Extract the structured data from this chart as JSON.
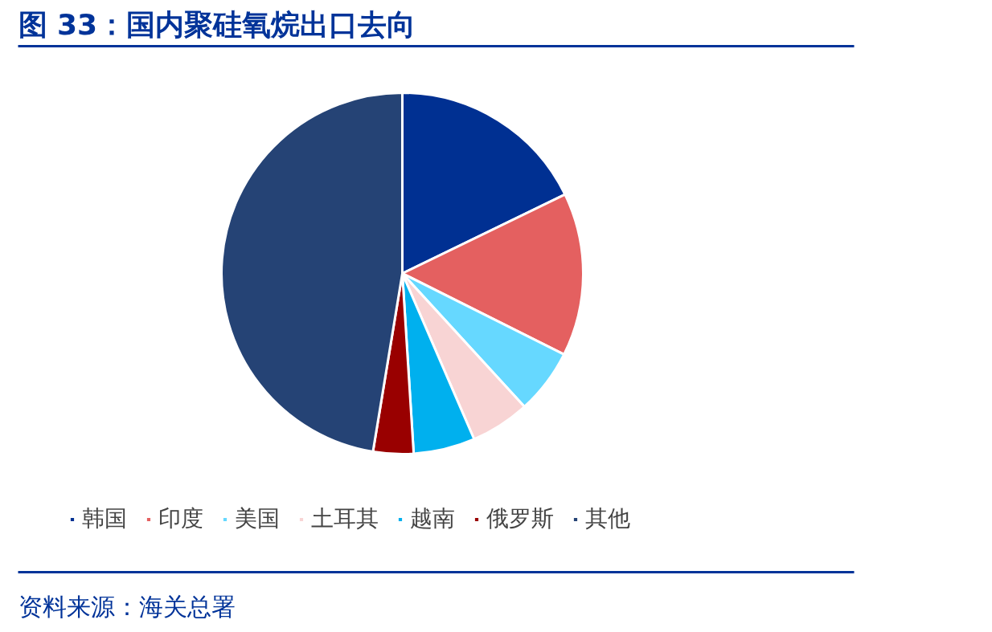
{
  "chart_data": {
    "type": "pie",
    "title": "图 33：国内聚硅氧烷出口去向",
    "categories": [
      "韩国",
      "印度",
      "美国",
      "土耳其",
      "越南",
      "俄罗斯",
      "其他"
    ],
    "values": [
      17.8,
      14.6,
      5.8,
      5.3,
      5.5,
      3.6,
      47.4
    ],
    "colors": [
      "#003092",
      "#e46060",
      "#66d8ff",
      "#f8d4d4",
      "#00b0ee",
      "#990000",
      "#254375"
    ],
    "legend": "bottom",
    "annotations": [
      "资料来源：海关总署"
    ]
  }
}
